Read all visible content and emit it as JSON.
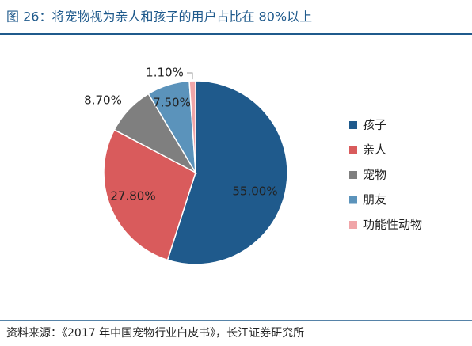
{
  "chart_data": {
    "type": "pie",
    "title": "图 26：将宠物视为亲人和孩子的用户占比在 80%以上",
    "categories": [
      "孩子",
      "亲人",
      "宠物",
      "朋友",
      "功能性动物"
    ],
    "values": [
      55.0,
      27.8,
      8.7,
      7.5,
      1.1
    ],
    "value_labels": [
      "55.00%",
      "27.80%",
      "8.70%",
      "7.50%",
      "1.10%"
    ],
    "colors": [
      "#1f5a8c",
      "#d95b5c",
      "#7f7f7f",
      "#5b93bb",
      "#f0a5a8"
    ],
    "legend": "right",
    "source": "资料来源：《2017 年中国宠物行业白皮书》，长江证券研究所"
  }
}
